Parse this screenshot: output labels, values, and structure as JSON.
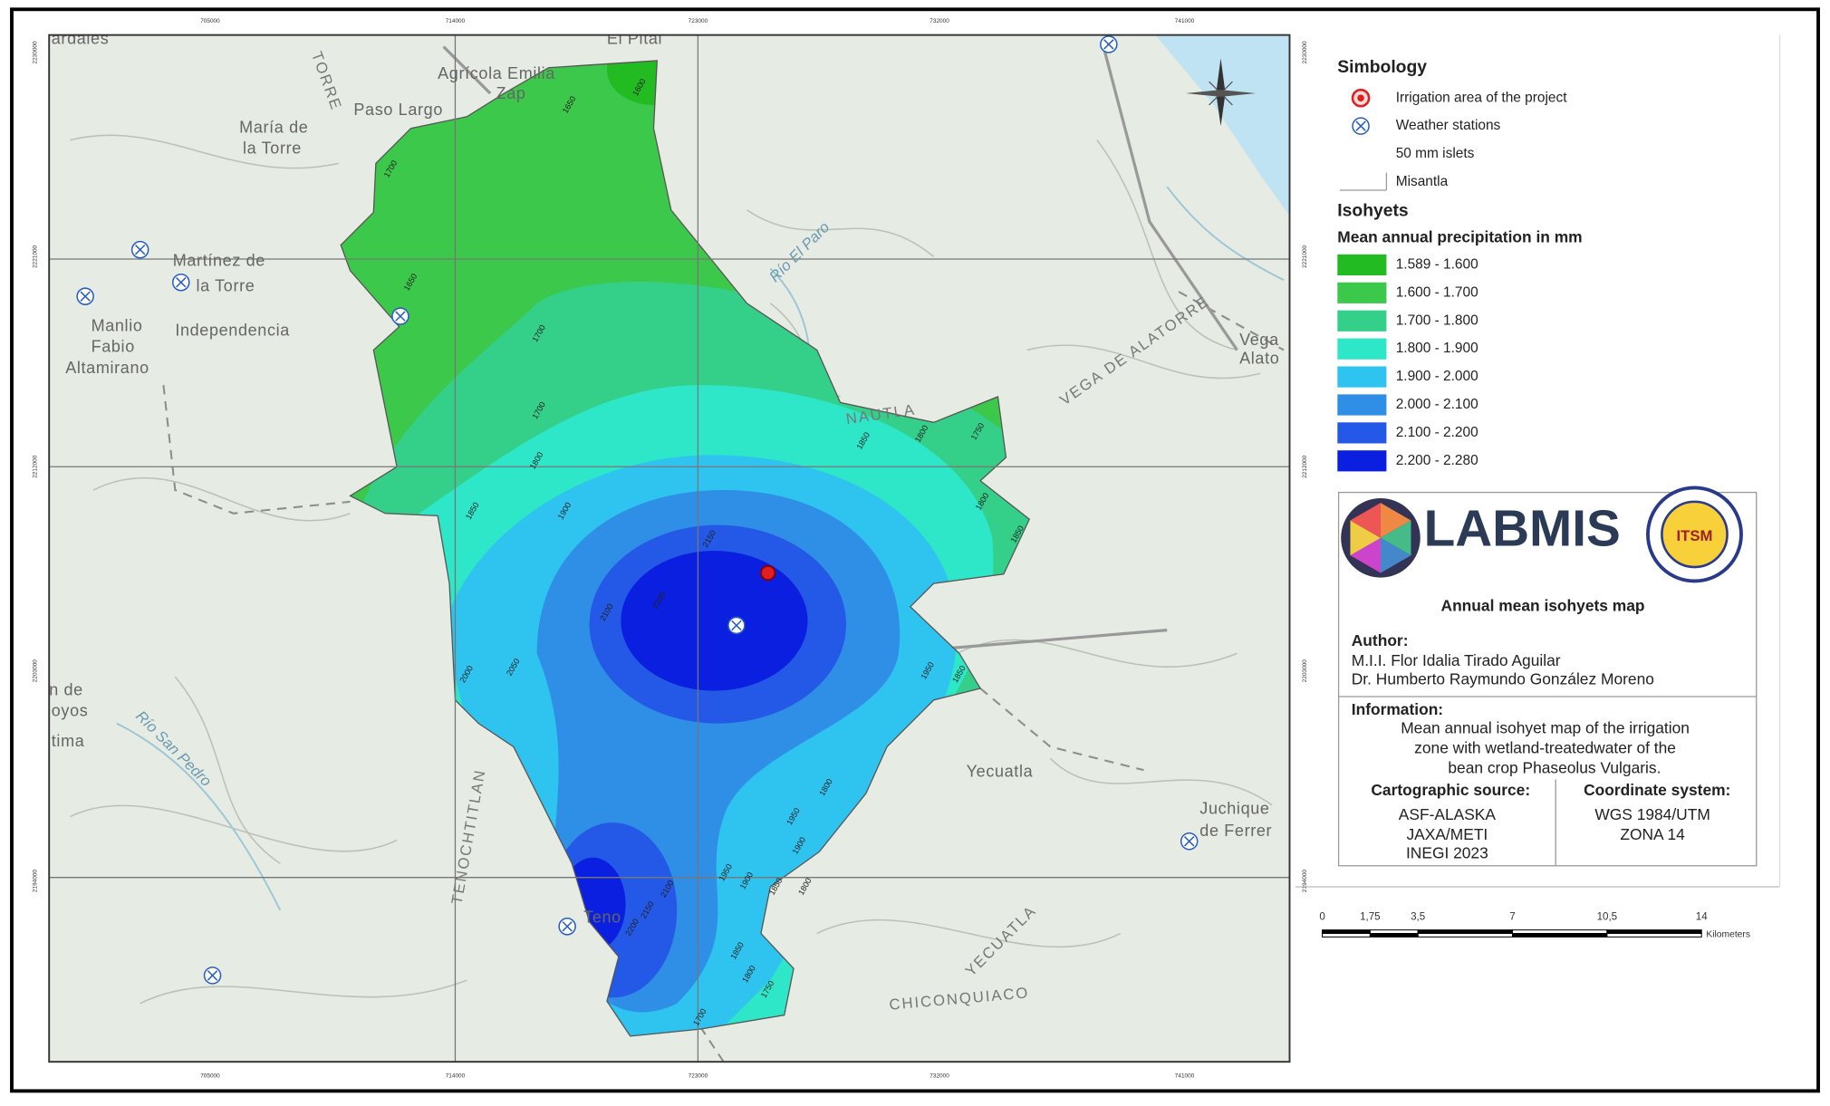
{
  "map": {
    "x_coords": [
      "705000",
      "714000",
      "723000",
      "732000",
      "741000"
    ],
    "y_coords": [
      "2230000",
      "2221000",
      "2212000",
      "2203000",
      "2194000"
    ],
    "places": [
      "Martínez de",
      "la Torre",
      "María de",
      "la Torre",
      "Agrícola Emilia",
      "Zap",
      "Paso Largo",
      "Manlio",
      "Fabio",
      "Altamirano",
      "Independencia",
      "Río El Paro",
      "NAUTLA",
      "VEGA DE ALATORRE",
      "Vega",
      "Alato",
      "Yecuatla",
      "Juchique",
      "de Ferrer",
      "TENOCHTITLAN",
      "CHICONQUIACO",
      "YECUATLA",
      "Río San Pedro",
      "Teno",
      "TORRE",
      "n de",
      "oyos",
      "tima",
      "El Pital",
      "ardales"
    ],
    "contour_labels": [
      "1600",
      "1650",
      "1700",
      "1650",
      "1700",
      "1700",
      "1800",
      "1850",
      "1900",
      "1850",
      "1800",
      "1750",
      "1800",
      "1850",
      "2150",
      "2200",
      "2100",
      "2050",
      "2000",
      "1950",
      "1850",
      "1800",
      "1950",
      "1900",
      "1850",
      "1800",
      "2100",
      "2150",
      "2200",
      "1950",
      "1900",
      "1850",
      "1800",
      "1750",
      "1700"
    ]
  },
  "legend": {
    "simbology_title": "Simbology",
    "symbols": [
      "Irrigation area of the project",
      "Weather stations",
      "50 mm islets",
      "Misantla"
    ],
    "isohyets_title": "Isohyets",
    "subtitle": "Mean annual precipitation in mm",
    "classes": [
      {
        "label": "1.589 - 1.600",
        "color": "#22bb22"
      },
      {
        "label": "1.600 - 1.700",
        "color": "#3cc84a"
      },
      {
        "label": "1.700 - 1.800",
        "color": "#34d08a"
      },
      {
        "label": "1.800 - 1.900",
        "color": "#2ee6c8"
      },
      {
        "label": "1.900 - 2.000",
        "color": "#2fc3ef"
      },
      {
        "label": "2.000 - 2.100",
        "color": "#2f8ee6"
      },
      {
        "label": "2.100 - 2.200",
        "color": "#2458e6"
      },
      {
        "label": "2.200 - 2.280",
        "color": "#0a1fe0"
      }
    ]
  },
  "info": {
    "logo_text": "LABMIS",
    "seal_text": "ITSM",
    "map_title": "Annual mean isohyets map",
    "author_heading": "Author:",
    "authors": [
      "M.I.I. Flor Idalia Tirado Aguilar",
      "Dr. Humberto Raymundo González Moreno"
    ],
    "information_heading": "Information:",
    "information": [
      "Mean annual isohyet map of the irrigation",
      "zone with wetland-treatedwater of the",
      "bean crop Phaseolus Vulgaris."
    ],
    "carto_heading": "Cartographic source:",
    "carto": [
      "ASF-ALASKA",
      "JAXA/METI",
      "INEGI 2023"
    ],
    "coord_heading": "Coordinate system:",
    "coord": [
      "WGS 1984/UTM",
      "ZONA 14"
    ]
  },
  "scale_bar": {
    "ticks": [
      "0",
      "1,75",
      "3,5",
      "7",
      "10,5",
      "14"
    ],
    "unit": "Kilometers"
  }
}
